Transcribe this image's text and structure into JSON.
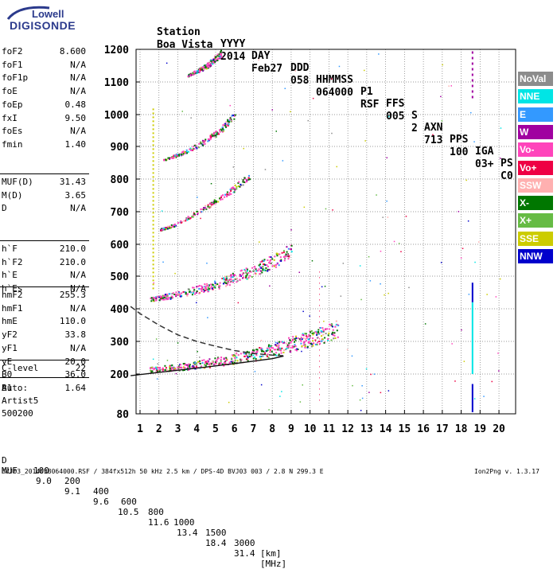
{
  "logo": {
    "line1": "Lowell",
    "line2": "DIGISONDE"
  },
  "header": {
    "labels": [
      "Station",
      "YYYY",
      "DAY",
      "DDD",
      "HHMMSS",
      "P1",
      "FFS",
      "S",
      "AXN",
      "PPS",
      "IGA",
      "PS"
    ],
    "values": [
      "Boa Vista",
      "2014",
      "Feb27",
      "058",
      "064000",
      "RSF",
      "005",
      "2",
      "713",
      "100",
      "03+",
      "C0"
    ]
  },
  "params": [
    [
      {
        "name": "foF2",
        "value": "8.600"
      },
      {
        "name": "foF1",
        "value": "N/A"
      },
      {
        "name": "foF1p",
        "value": "N/A"
      },
      {
        "name": "foE",
        "value": "N/A"
      },
      {
        "name": "foEp",
        "value": "0.48"
      },
      {
        "name": "fxI",
        "value": "9.50"
      },
      {
        "name": "foEs",
        "value": "N/A"
      },
      {
        "name": "fmin",
        "value": "1.40"
      }
    ],
    [
      {
        "name": "MUF(D)",
        "value": "31.43"
      },
      {
        "name": "M(D)",
        "value": "3.65"
      },
      {
        "name": "D",
        "value": "N/A"
      }
    ],
    [
      {
        "name": "h`F",
        "value": "210.0"
      },
      {
        "name": "h`F2",
        "value": "210.0"
      },
      {
        "name": "h`E",
        "value": "N/A"
      },
      {
        "name": "h`Es",
        "value": "N/A"
      }
    ],
    [
      {
        "name": "hmF2",
        "value": "255.3"
      },
      {
        "name": "hmF1",
        "value": "N/A"
      },
      {
        "name": "hmE",
        "value": "110.0"
      },
      {
        "name": "yF2",
        "value": "33.8"
      },
      {
        "name": "yF1",
        "value": "N/A"
      },
      {
        "name": "yE",
        "value": "20.0"
      },
      {
        "name": "B0",
        "value": "36.0"
      },
      {
        "name": "B1",
        "value": "1.64"
      }
    ],
    [
      {
        "name": "C-level",
        "value": "22"
      }
    ]
  ],
  "auto": {
    "line1": "Auto:",
    "line2": "Artist5",
    "line3": "500200"
  },
  "legend": [
    {
      "label": "NoVal",
      "color": "#8c8c8c"
    },
    {
      "label": "NNE",
      "color": "#00e5e5"
    },
    {
      "label": "E",
      "color": "#3399ff"
    },
    {
      "label": "W",
      "color": "#a000a0"
    },
    {
      "label": "Vo-",
      "color": "#ff44bb"
    },
    {
      "label": "Vo+",
      "color": "#ee0044"
    },
    {
      "label": "SSW",
      "color": "#ffb0b0"
    },
    {
      "label": "X-",
      "color": "#007700"
    },
    {
      "label": "X+",
      "color": "#66bb44"
    },
    {
      "label": "SSE",
      "color": "#cccc00"
    },
    {
      "label": "NNW",
      "color": "#0000cc"
    }
  ],
  "muf_table": {
    "d_label": "D",
    "d_values": [
      "100",
      "200",
      "400",
      "600",
      "800",
      "1000",
      "1500",
      "3000"
    ],
    "d_unit": "[km]",
    "muf_label": "MUF",
    "muf_values": [
      "9.0",
      "9.1",
      "9.6",
      "10.5",
      "11.6",
      "13.4",
      "18.4",
      "31.4"
    ],
    "muf_unit": "[MHz]"
  },
  "footer": {
    "left": "BVJ03_2014058064000.RSF / 384fx512h 50 kHz 2.5 km / DPS-4D BVJ03 003 / 2.8 N 299.3 E",
    "right": "Ion2Png v. 1.3.17"
  },
  "chart_data": {
    "type": "scatter",
    "xlim": [
      0.5,
      20.5
    ],
    "ylim": [
      80,
      1200
    ],
    "x_ticks": [
      1,
      2,
      3,
      4,
      5,
      6,
      7,
      8,
      9,
      10,
      11,
      12,
      13,
      14,
      15,
      16,
      17,
      18,
      19,
      20
    ],
    "y_ticks": [
      80,
      200,
      300,
      400,
      500,
      600,
      700,
      800,
      900,
      1000,
      1100,
      1200
    ],
    "grid": true,
    "traces": [
      {
        "name": "1 hop",
        "x": [
          1.5,
          3,
          5,
          7,
          8.5,
          10,
          11.5
        ],
        "y": [
          215,
          222,
          238,
          260,
          285,
          310,
          340
        ]
      },
      {
        "name": "2 hop",
        "x": [
          1.5,
          3,
          5,
          7,
          8.5,
          9
        ],
        "y": [
          430,
          445,
          475,
          520,
          560,
          590
        ]
      },
      {
        "name": "3 hop",
        "x": [
          2,
          3,
          4,
          5,
          6,
          6.8
        ],
        "y": [
          645,
          665,
          700,
          735,
          775,
          810
        ]
      },
      {
        "name": "4 hop",
        "x": [
          2.2,
          3.2,
          4.2,
          5.2,
          6
        ],
        "y": [
          860,
          880,
          910,
          950,
          1000
        ]
      },
      {
        "name": "5 hop",
        "x": [
          3.5,
          4.5,
          5.3
        ],
        "y": [
          1120,
          1150,
          1190
        ]
      }
    ],
    "profile": {
      "x": [
        0.5,
        1,
        2,
        3,
        4,
        5,
        6,
        7,
        8,
        8.6
      ],
      "y": [
        407,
        385,
        350,
        320,
        300,
        285,
        272,
        263,
        258,
        256
      ]
    },
    "trace_line": {
      "x": [
        0.5,
        2,
        4,
        6,
        8,
        8.6
      ],
      "y": [
        195,
        205,
        218,
        232,
        247,
        255
      ]
    }
  }
}
